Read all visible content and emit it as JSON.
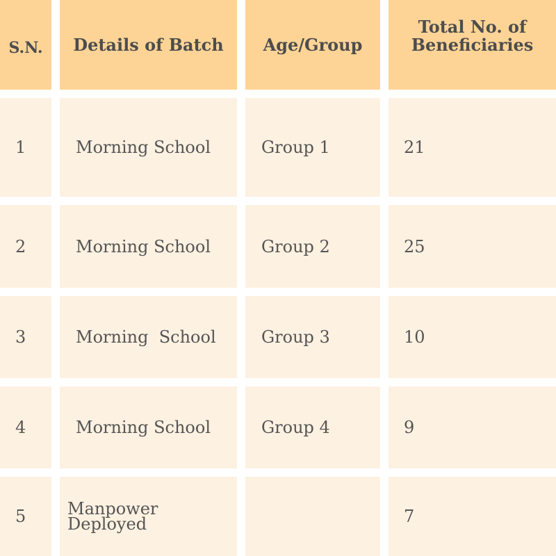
{
  "table": {
    "headers": [
      "S.N.",
      "Details of Batch",
      "Age/Group",
      "Total No. of Beneficiaries"
    ],
    "rows": [
      [
        "1",
        "Morning School",
        "Group 1",
        "21"
      ],
      [
        "2",
        "Morning School",
        "Group 2",
        "25"
      ],
      [
        "3",
        "Morning  School",
        "Group 3",
        "10"
      ],
      [
        "4",
        "Morning School",
        "Group 4",
        "9"
      ],
      [
        "5",
        "Manpower Deployed",
        "",
        "7"
      ]
    ]
  },
  "colors": {
    "header_bg": "#fed496",
    "row_bg": "#fdf1e1",
    "text": "#555555"
  }
}
